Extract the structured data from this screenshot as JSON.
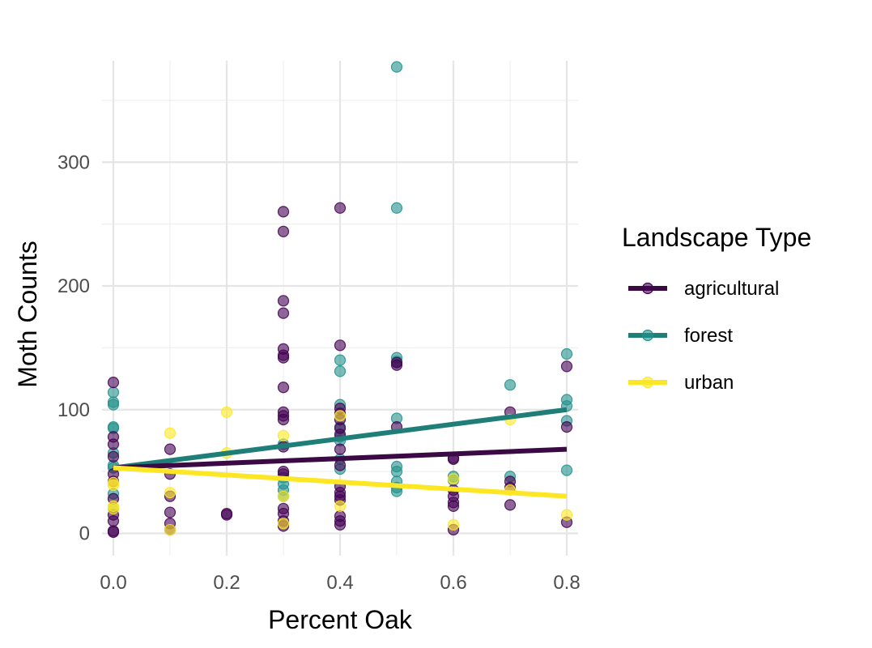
{
  "chart_data": {
    "type": "scatter",
    "xlabel": "Percent Oak",
    "ylabel": "Moth Counts",
    "xlim": [
      -0.02,
      0.82
    ],
    "ylim": [
      -18,
      382
    ],
    "x_ticks": [
      0.0,
      0.2,
      0.4,
      0.6,
      0.8
    ],
    "x_tick_labels": [
      "0.0",
      "0.2",
      "0.4",
      "0.6",
      "0.8"
    ],
    "y_ticks": [
      0,
      100,
      200,
      300
    ],
    "y_tick_labels": [
      "0",
      "100",
      "200",
      "300"
    ],
    "grid": true,
    "legend": {
      "title": "Landscape Type",
      "position": "right"
    },
    "series": [
      {
        "name": "agricultural",
        "color": "#440154",
        "line_color": "#3b0a45",
        "trend": {
          "x": [
            0.0,
            0.8
          ],
          "y": [
            53,
            68
          ]
        },
        "points": [
          [
            0.0,
            122
          ],
          [
            0.0,
            78
          ],
          [
            0.0,
            72
          ],
          [
            0.0,
            62
          ],
          [
            0.0,
            48
          ],
          [
            0.0,
            42
          ],
          [
            0.0,
            28
          ],
          [
            0.0,
            15
          ],
          [
            0.0,
            10
          ],
          [
            0.0,
            2
          ],
          [
            0.0,
            1
          ],
          [
            0.1,
            68
          ],
          [
            0.1,
            48
          ],
          [
            0.1,
            30
          ],
          [
            0.1,
            17
          ],
          [
            0.1,
            8
          ],
          [
            0.1,
            3
          ],
          [
            0.2,
            16
          ],
          [
            0.2,
            15
          ],
          [
            0.3,
            260
          ],
          [
            0.3,
            244
          ],
          [
            0.3,
            188
          ],
          [
            0.3,
            178
          ],
          [
            0.3,
            149
          ],
          [
            0.3,
            144
          ],
          [
            0.3,
            142
          ],
          [
            0.3,
            118
          ],
          [
            0.3,
            98
          ],
          [
            0.3,
            95
          ],
          [
            0.3,
            92
          ],
          [
            0.3,
            70
          ],
          [
            0.3,
            50
          ],
          [
            0.3,
            48
          ],
          [
            0.3,
            20
          ],
          [
            0.3,
            16
          ],
          [
            0.3,
            10
          ],
          [
            0.3,
            6
          ],
          [
            0.4,
            263
          ],
          [
            0.4,
            152
          ],
          [
            0.4,
            101
          ],
          [
            0.4,
            97
          ],
          [
            0.4,
            92
          ],
          [
            0.4,
            85
          ],
          [
            0.4,
            80
          ],
          [
            0.4,
            68
          ],
          [
            0.4,
            55
          ],
          [
            0.4,
            38
          ],
          [
            0.4,
            33
          ],
          [
            0.4,
            30
          ],
          [
            0.4,
            27
          ],
          [
            0.4,
            14
          ],
          [
            0.4,
            10
          ],
          [
            0.4,
            7
          ],
          [
            0.5,
            138
          ],
          [
            0.5,
            136
          ],
          [
            0.5,
            86
          ],
          [
            0.6,
            61
          ],
          [
            0.6,
            60
          ],
          [
            0.6,
            35
          ],
          [
            0.6,
            30
          ],
          [
            0.6,
            25
          ],
          [
            0.6,
            22
          ],
          [
            0.6,
            3
          ],
          [
            0.7,
            98
          ],
          [
            0.7,
            42
          ],
          [
            0.7,
            37
          ],
          [
            0.7,
            23
          ],
          [
            0.8,
            135
          ],
          [
            0.8,
            86
          ],
          [
            0.8,
            9
          ]
        ]
      },
      {
        "name": "forest",
        "color": "#21918c",
        "line_color": "#1f7f78",
        "trend": {
          "x": [
            0.0,
            0.8
          ],
          "y": [
            53,
            100
          ]
        },
        "points": [
          [
            0.0,
            114
          ],
          [
            0.0,
            106
          ],
          [
            0.0,
            104
          ],
          [
            0.0,
            86
          ],
          [
            0.0,
            85
          ],
          [
            0.0,
            65
          ],
          [
            0.0,
            55
          ],
          [
            0.0,
            53
          ],
          [
            0.0,
            32
          ],
          [
            0.0,
            20
          ],
          [
            0.3,
            72
          ],
          [
            0.3,
            45
          ],
          [
            0.3,
            40
          ],
          [
            0.3,
            35
          ],
          [
            0.3,
            30
          ],
          [
            0.4,
            140
          ],
          [
            0.4,
            131
          ],
          [
            0.4,
            104
          ],
          [
            0.4,
            86
          ],
          [
            0.4,
            78
          ],
          [
            0.4,
            75
          ],
          [
            0.4,
            60
          ],
          [
            0.4,
            52
          ],
          [
            0.5,
            377
          ],
          [
            0.5,
            263
          ],
          [
            0.5,
            142
          ],
          [
            0.5,
            139
          ],
          [
            0.5,
            93
          ],
          [
            0.5,
            54
          ],
          [
            0.5,
            50
          ],
          [
            0.5,
            42
          ],
          [
            0.5,
            37
          ],
          [
            0.5,
            34
          ],
          [
            0.6,
            46
          ],
          [
            0.6,
            43
          ],
          [
            0.7,
            120
          ],
          [
            0.7,
            46
          ],
          [
            0.8,
            145
          ],
          [
            0.8,
            108
          ],
          [
            0.8,
            103
          ],
          [
            0.8,
            91
          ],
          [
            0.8,
            51
          ]
        ]
      },
      {
        "name": "urban",
        "color": "#fde725",
        "line_color": "#fde725",
        "trend": {
          "x": [
            0.0,
            0.8
          ],
          "y": [
            53,
            30
          ]
        },
        "points": [
          [
            0.0,
            41
          ],
          [
            0.0,
            39
          ],
          [
            0.0,
            22
          ],
          [
            0.0,
            20
          ],
          [
            0.1,
            81
          ],
          [
            0.1,
            33
          ],
          [
            0.1,
            3
          ],
          [
            0.2,
            98
          ],
          [
            0.2,
            65
          ],
          [
            0.3,
            79
          ],
          [
            0.3,
            30
          ],
          [
            0.3,
            8
          ],
          [
            0.4,
            95
          ],
          [
            0.4,
            22
          ],
          [
            0.6,
            44
          ],
          [
            0.6,
            7
          ],
          [
            0.7,
            92
          ],
          [
            0.7,
            35
          ],
          [
            0.8,
            15
          ]
        ]
      }
    ]
  }
}
